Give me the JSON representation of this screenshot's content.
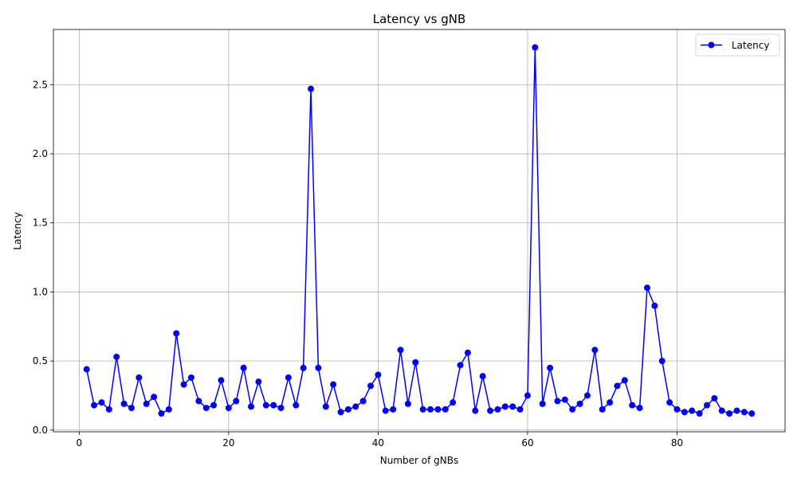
{
  "chart_data": {
    "type": "line",
    "title": "Latency vs gNB",
    "xlabel": "Number of gNBs",
    "ylabel": "Latency",
    "xlim": [
      -3.45,
      94.45
    ],
    "ylim": [
      -0.0125,
      2.9
    ],
    "xticks": [
      0,
      20,
      40,
      60,
      80
    ],
    "xtick_labels": [
      "0",
      "20",
      "40",
      "60",
      "80"
    ],
    "yticks": [
      0.0,
      0.5,
      1.0,
      1.5,
      2.0,
      2.5
    ],
    "ytick_labels": [
      "0.0",
      "0.5",
      "1.0",
      "1.5",
      "2.0",
      "2.5"
    ],
    "grid": true,
    "legend": {
      "position": "top-right"
    },
    "series": [
      {
        "name": "Latency",
        "color": "#0000ff",
        "marker": "circle",
        "x": [
          1,
          2,
          3,
          4,
          5,
          6,
          7,
          8,
          9,
          10,
          11,
          12,
          13,
          14,
          15,
          16,
          17,
          18,
          19,
          20,
          21,
          22,
          23,
          24,
          25,
          26,
          27,
          28,
          29,
          30,
          31,
          32,
          33,
          34,
          35,
          36,
          37,
          38,
          39,
          40,
          41,
          42,
          43,
          44,
          45,
          46,
          47,
          48,
          49,
          50,
          51,
          52,
          53,
          54,
          55,
          56,
          57,
          58,
          59,
          60,
          61,
          62,
          63,
          64,
          65,
          66,
          67,
          68,
          69,
          70,
          71,
          72,
          73,
          74,
          75,
          76,
          77,
          78,
          79,
          80,
          81,
          82,
          83,
          84,
          85,
          86,
          87,
          88,
          89,
          90
        ],
        "y": [
          0.44,
          0.18,
          0.2,
          0.15,
          0.53,
          0.19,
          0.16,
          0.38,
          0.19,
          0.24,
          0.12,
          0.15,
          0.7,
          0.33,
          0.38,
          0.21,
          0.16,
          0.18,
          0.36,
          0.16,
          0.21,
          0.45,
          0.17,
          0.35,
          0.18,
          0.18,
          0.16,
          0.38,
          0.18,
          0.45,
          2.47,
          0.45,
          0.17,
          0.33,
          0.13,
          0.15,
          0.17,
          0.21,
          0.32,
          0.4,
          0.14,
          0.15,
          0.58,
          0.19,
          0.49,
          0.15,
          0.15,
          0.15,
          0.15,
          0.2,
          0.47,
          0.56,
          0.14,
          0.39,
          0.14,
          0.15,
          0.17,
          0.17,
          0.15,
          0.25,
          2.77,
          0.19,
          0.45,
          0.21,
          0.22,
          0.15,
          0.19,
          0.25,
          0.58,
          0.15,
          0.2,
          0.32,
          0.36,
          0.18,
          0.16,
          1.03,
          0.9,
          0.5,
          0.2,
          0.15,
          0.13,
          0.14,
          0.12,
          0.18,
          0.23,
          0.14,
          0.12,
          0.14,
          0.13,
          0.12
        ]
      }
    ]
  }
}
